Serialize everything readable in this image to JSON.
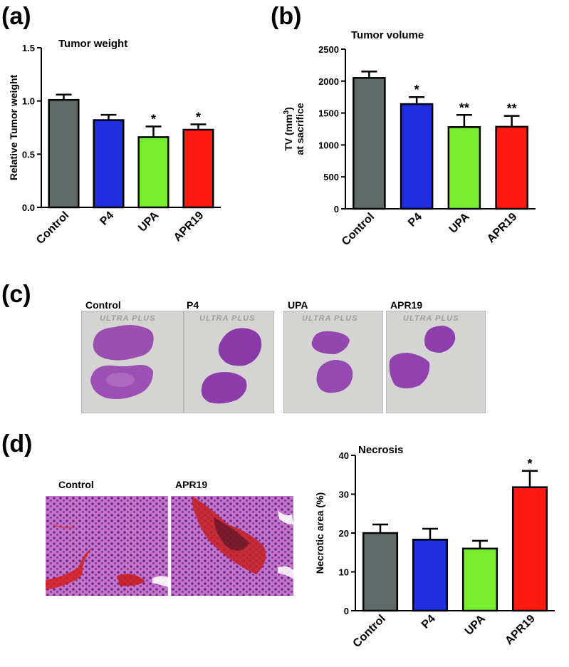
{
  "panels": {
    "a": "(a)",
    "b": "(b)",
    "c": "(c)",
    "d": "(d)"
  },
  "colors": {
    "Control": "#5f6b69",
    "P4": "#1f2fe0",
    "UPA": "#77ee2d",
    "APR19": "#ff1a10"
  },
  "chart_data": [
    {
      "type": "bar",
      "title": "Tumor weight",
      "ylabel": "Relative Tumor weight",
      "xlabel": "",
      "categories": [
        "Control",
        "P4",
        "UPA",
        "APR19"
      ],
      "values": [
        1.01,
        0.82,
        0.66,
        0.73
      ],
      "errors": [
        0.05,
        0.05,
        0.1,
        0.05
      ],
      "significance": [
        "",
        "",
        "*",
        "*"
      ],
      "ylim": [
        0,
        1.5
      ],
      "yticks": [
        0.0,
        0.5,
        1.0,
        1.5
      ],
      "ytick_labels": [
        "0.0",
        "0.5",
        "1.0",
        "1.5"
      ]
    },
    {
      "type": "bar",
      "title": "Tumor volume",
      "ylabel": "TV (mm3) at sacrifice",
      "ylabel_lines": [
        "TV (mm",
        "3",
        ")",
        "at sacrifice"
      ],
      "xlabel": "",
      "categories": [
        "Control",
        "P4",
        "UPA",
        "APR19"
      ],
      "values": [
        2050,
        1640,
        1280,
        1285
      ],
      "errors": [
        100,
        110,
        190,
        170
      ],
      "significance": [
        "",
        "*",
        "**",
        "**"
      ],
      "ylim": [
        0,
        2500
      ],
      "yticks": [
        0,
        500,
        1000,
        1500,
        2000,
        2500
      ],
      "ytick_labels": [
        "0",
        "500",
        "1000",
        "1500",
        "2000",
        "2500"
      ]
    },
    {
      "type": "bar",
      "title": "Necrosis",
      "ylabel": "Necrotic area (%)",
      "xlabel": "",
      "categories": [
        "Control",
        "P4",
        "UPA",
        "APR19"
      ],
      "values": [
        20,
        18.3,
        16,
        31.8
      ],
      "errors": [
        2.2,
        2.8,
        2.0,
        4.2
      ],
      "significance": [
        "",
        "",
        "",
        "*"
      ],
      "ylim": [
        0,
        40
      ],
      "yticks": [
        0,
        10,
        20,
        30,
        40
      ],
      "ytick_labels": [
        "0",
        "10",
        "20",
        "30",
        "40"
      ]
    }
  ],
  "slides": [
    {
      "label": "Control",
      "brand": "ULTRA PLUS"
    },
    {
      "label": "P4",
      "brand": "ULTRA PLUS"
    },
    {
      "label": "UPA",
      "brand": "ULTRA PLUS"
    },
    {
      "label": "APR19",
      "brand": "ULTRA PLUS"
    }
  ],
  "histology": [
    {
      "label": "Control"
    },
    {
      "label": "APR19"
    }
  ]
}
